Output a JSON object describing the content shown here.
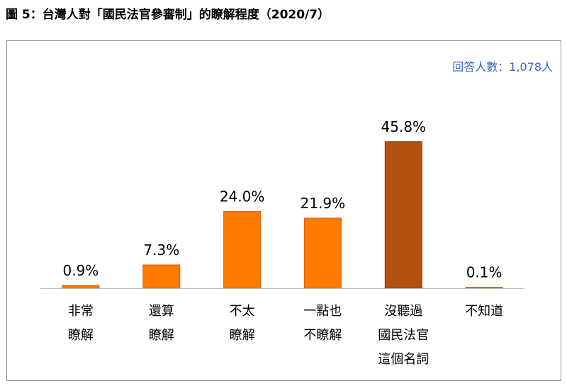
{
  "figure_title": "圖 5：台灣人對「國民法官參審制」的瞭解程度（2020/7）",
  "sample_note": "回答人數：1,078人",
  "colors": {
    "bar": "#ff7a00",
    "bar_highlight": "#b5500f",
    "plot_border": "#8c8c8c",
    "note": "#3366cc"
  },
  "chart_data": {
    "type": "bar",
    "title": "圖 5：台灣人對「國民法官參審制」的瞭解程度（2020/7）",
    "categories": [
      [
        "非常",
        "瞭解"
      ],
      [
        "還算",
        "瞭解"
      ],
      [
        "不太",
        "瞭解"
      ],
      [
        "一點也",
        "不瞭解"
      ],
      [
        "沒聽過",
        "國民法官",
        "這個名詞"
      ],
      [
        "不知道"
      ]
    ],
    "values": [
      0.9,
      7.3,
      24.0,
      21.9,
      45.8,
      0.1
    ],
    "value_labels": [
      "0.9%",
      "7.3%",
      "24.0%",
      "21.9%",
      "45.8%",
      "0.1%"
    ],
    "highlight_index": 4,
    "ylim": [
      0,
      63
    ],
    "grid": false,
    "legend": "none"
  }
}
